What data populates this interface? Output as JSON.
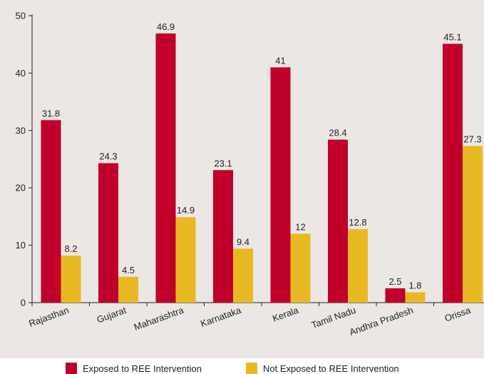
{
  "chart_data": {
    "type": "bar",
    "categories": [
      "Rajasthan",
      "Gujarat",
      "Maharashtra",
      "Karnataka",
      "Kerala",
      "Tamil Nadu",
      "Andhra Pradesh",
      "Orissa"
    ],
    "series": [
      {
        "name": "Exposed to REE Intervention",
        "values": [
          31.8,
          24.3,
          46.9,
          23.1,
          41,
          28.4,
          2.5,
          45.1
        ],
        "color": "#c0002b"
      },
      {
        "name": "Not Exposed to REE Intervention",
        "values": [
          8.2,
          4.5,
          14.9,
          9.4,
          12,
          12.8,
          1.8,
          27.3
        ],
        "color": "#e8b923"
      }
    ],
    "ylim": [
      0,
      50
    ],
    "yticks": [
      0,
      10,
      20,
      30,
      40,
      50
    ],
    "legend_position": "bottom",
    "grid": false
  }
}
